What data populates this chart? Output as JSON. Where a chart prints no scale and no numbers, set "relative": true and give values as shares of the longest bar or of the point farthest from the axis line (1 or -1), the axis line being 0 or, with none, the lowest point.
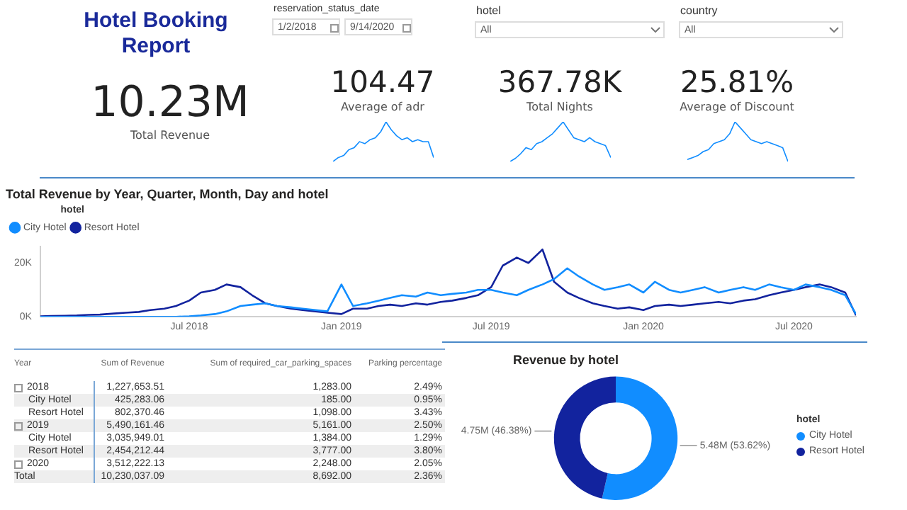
{
  "chart_data": [
    {
      "type": "other",
      "title": "Hotel Booking Report",
      "annotations": [
        "reservation_status_date",
        "1/2/2018",
        "9/14/2020",
        "hotel",
        "All",
        "country",
        "All"
      ]
    },
    {
      "type": "other",
      "annotations": [
        "10.23M",
        "Total Revenue"
      ]
    },
    {
      "type": "line",
      "relative": true,
      "title": "Average of adr",
      "annotations": [
        "104.47"
      ],
      "marker": "none",
      "categories": [
        null,
        null,
        null,
        null,
        null,
        null,
        null,
        null,
        null,
        null,
        null,
        null,
        null,
        null,
        null,
        null,
        null,
        null,
        null,
        null
      ],
      "series": [
        {
          "color": "#118dff",
          "values": [
            0,
            0.1,
            0.15,
            0.3,
            0.35,
            0.5,
            0.45,
            0.55,
            0.6,
            0.75,
            1,
            0.8,
            0.65,
            0.55,
            0.6,
            0.5,
            0.55,
            0.5,
            0.5,
            0.1
          ]
        }
      ]
    },
    {
      "type": "line",
      "relative": true,
      "title": "Total Nights",
      "annotations": [
        "367.78K"
      ],
      "marker": "none",
      "categories": [
        null,
        null,
        null,
        null,
        null,
        null,
        null,
        null,
        null,
        null,
        null,
        null,
        null,
        null,
        null,
        null,
        null,
        null,
        null,
        null
      ],
      "series": [
        {
          "color": "#118dff",
          "values": [
            0,
            0.08,
            0.2,
            0.35,
            0.3,
            0.45,
            0.5,
            0.6,
            0.7,
            0.85,
            1,
            0.8,
            0.6,
            0.55,
            0.5,
            0.6,
            0.5,
            0.45,
            0.4,
            0.1
          ]
        }
      ]
    },
    {
      "type": "line",
      "relative": true,
      "title": "Average of Discount",
      "annotations": [
        "25.81%"
      ],
      "marker": "none",
      "categories": [
        null,
        null,
        null,
        null,
        null,
        null,
        null,
        null,
        null,
        null,
        null,
        null,
        null,
        null,
        null,
        null,
        null,
        null,
        null,
        null
      ],
      "series": [
        {
          "color": "#118dff",
          "values": [
            0.05,
            0.1,
            0.15,
            0.25,
            0.3,
            0.45,
            0.5,
            0.55,
            0.7,
            1,
            0.85,
            0.7,
            0.55,
            0.5,
            0.45,
            0.5,
            0.45,
            0.4,
            0.35,
            0
          ]
        }
      ]
    },
    {
      "type": "line",
      "title": "Total Revenue by Year, Quarter, Month, Day and hotel",
      "legend": "top left",
      "legend_title": "hotel",
      "marker": "none",
      "x": [
        "2018-01-02",
        "2018-01-15",
        "2018-02-01",
        "2018-02-15",
        "2018-03-01",
        "2018-03-15",
        "2018-04-01",
        "2018-04-15",
        "2018-05-01",
        "2018-05-15",
        "2018-06-01",
        "2018-06-15",
        "2018-07-01",
        "2018-07-15",
        "2018-08-01",
        "2018-08-15",
        "2018-09-01",
        "2018-09-15",
        "2018-10-01",
        "2018-10-15",
        "2018-11-01",
        "2018-11-15",
        "2018-12-01",
        "2018-12-15",
        "2019-01-01",
        "2019-01-15",
        "2019-02-01",
        "2019-02-15",
        "2019-03-01",
        "2019-03-15",
        "2019-04-01",
        "2019-04-15",
        "2019-05-01",
        "2019-05-15",
        "2019-06-01",
        "2019-06-15",
        "2019-07-01",
        "2019-07-15",
        "2019-08-01",
        "2019-08-15",
        "2019-09-01",
        "2019-09-15",
        "2019-10-01",
        "2019-10-15",
        "2019-11-01",
        "2019-11-15",
        "2019-12-01",
        "2019-12-15",
        "2020-01-01",
        "2020-01-15",
        "2020-02-01",
        "2020-02-15",
        "2020-03-01",
        "2020-03-15",
        "2020-04-01",
        "2020-04-15",
        "2020-05-01",
        "2020-05-15",
        "2020-06-01",
        "2020-06-15",
        "2020-07-01",
        "2020-07-15",
        "2020-08-01",
        "2020-08-15",
        "2020-09-01",
        "2020-09-14"
      ],
      "xlim": [
        "2018-01-02",
        "2020-09-14"
      ],
      "xticks": [
        {
          "value": "2018-07-01",
          "label": "Jul 2018"
        },
        {
          "value": "2019-01-01",
          "label": "Jan 2019"
        },
        {
          "value": "2019-07-01",
          "label": "Jul 2019"
        },
        {
          "value": "2020-01-01",
          "label": "Jan 2020"
        },
        {
          "value": "2020-07-01",
          "label": "Jul 2020"
        }
      ],
      "ylim": [
        0,
        26000
      ],
      "yticks": [
        {
          "value": 0,
          "label": "0K"
        },
        {
          "value": 20000,
          "label": "20K"
        }
      ],
      "series": [
        {
          "name": "City Hotel",
          "color": "#118dff",
          "values": [
            0,
            0,
            0,
            0,
            0,
            0,
            0,
            0,
            0,
            0,
            0,
            0,
            200,
            500,
            1000,
            2000,
            4000,
            4500,
            5000,
            4000,
            3500,
            3000,
            2500,
            2000,
            12000,
            4000,
            5000,
            6000,
            7000,
            8000,
            7500,
            9000,
            8000,
            8500,
            9000,
            10000,
            10000,
            9000,
            8000,
            10000,
            12000,
            14000,
            18000,
            15000,
            12000,
            10000,
            11000,
            12000,
            9000,
            13000,
            10000,
            9000,
            10000,
            11000,
            9000,
            10000,
            11000,
            10000,
            12000,
            11000,
            10000,
            12000,
            11000,
            10000,
            8000,
            1000
          ]
        },
        {
          "name": "Resort Hotel",
          "color": "#12239e",
          "values": [
            200,
            300,
            400,
            500,
            700,
            800,
            1200,
            1500,
            1800,
            2500,
            3000,
            4000,
            6000,
            9000,
            10000,
            12000,
            11000,
            8000,
            5000,
            4000,
            3000,
            2500,
            2000,
            1500,
            1000,
            3000,
            3000,
            4000,
            4500,
            4000,
            5000,
            4500,
            5500,
            6000,
            7000,
            8000,
            11000,
            19000,
            22000,
            20000,
            25000,
            13000,
            9000,
            7000,
            5000,
            4000,
            3000,
            3500,
            2500,
            4000,
            4500,
            4000,
            4500,
            5000,
            5500,
            5000,
            6000,
            6500,
            8000,
            9000,
            10000,
            11000,
            12000,
            11000,
            9000,
            500
          ]
        }
      ]
    },
    {
      "type": "other",
      "annotations": [
        "Year",
        "Sum of Revenue",
        "Sum of required_car_parking_spaces",
        "Parking percentage",
        "2018",
        "1,227,653.51",
        "1,283.00",
        "2.49%",
        "City Hotel",
        "425,283.06",
        "185.00",
        "0.95%",
        "Resort Hotel",
        "802,370.46",
        "1,098.00",
        "3.43%",
        "2019",
        "5,490,161.46",
        "5,161.00",
        "2.50%",
        "City Hotel",
        "3,035,949.01",
        "1,384.00",
        "1.29%",
        "Resort Hotel",
        "2,454,212.44",
        "3,777.00",
        "3.80%",
        "2020",
        "3,512,222.13",
        "2,248.00",
        "2.05%",
        "Total",
        "10,230,037.09",
        "8,692.00",
        "2.36%"
      ]
    },
    {
      "type": "donut",
      "title": "Revenue by hotel",
      "legend": "right",
      "legend_title": "hotel",
      "categories": [
        "City Hotel",
        "Resort Hotel"
      ],
      "values": [
        5480000,
        4750000
      ],
      "colors": [
        "#118dff",
        "#12239e"
      ],
      "value_labels": [
        "5.48M (53.62%)",
        "4.75M (46.38%)"
      ]
    }
  ]
}
